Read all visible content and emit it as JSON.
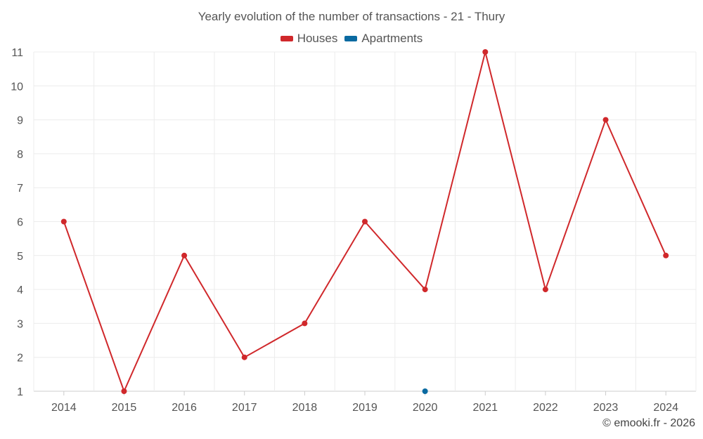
{
  "chart_data": {
    "type": "line",
    "title": "Yearly evolution of the number of transactions - 21 - Thury",
    "xlabel": "",
    "ylabel": "",
    "categories": [
      "2014",
      "2015",
      "2016",
      "2017",
      "2018",
      "2019",
      "2020",
      "2021",
      "2022",
      "2023",
      "2024"
    ],
    "ylim": [
      1,
      11
    ],
    "yticks": [
      1,
      2,
      3,
      4,
      5,
      6,
      7,
      8,
      9,
      10,
      11
    ],
    "grid": true,
    "legend_position": "top-center",
    "series": [
      {
        "name": "Houses",
        "color": "#d0282b",
        "values": [
          6,
          1,
          5,
          2,
          3,
          6,
          4,
          11,
          4,
          9,
          5
        ]
      },
      {
        "name": "Apartments",
        "color": "#0a6aa1",
        "values": [
          null,
          null,
          null,
          null,
          null,
          null,
          1,
          null,
          null,
          null,
          null
        ]
      }
    ]
  },
  "credit": "© emooki.fr - 2026"
}
